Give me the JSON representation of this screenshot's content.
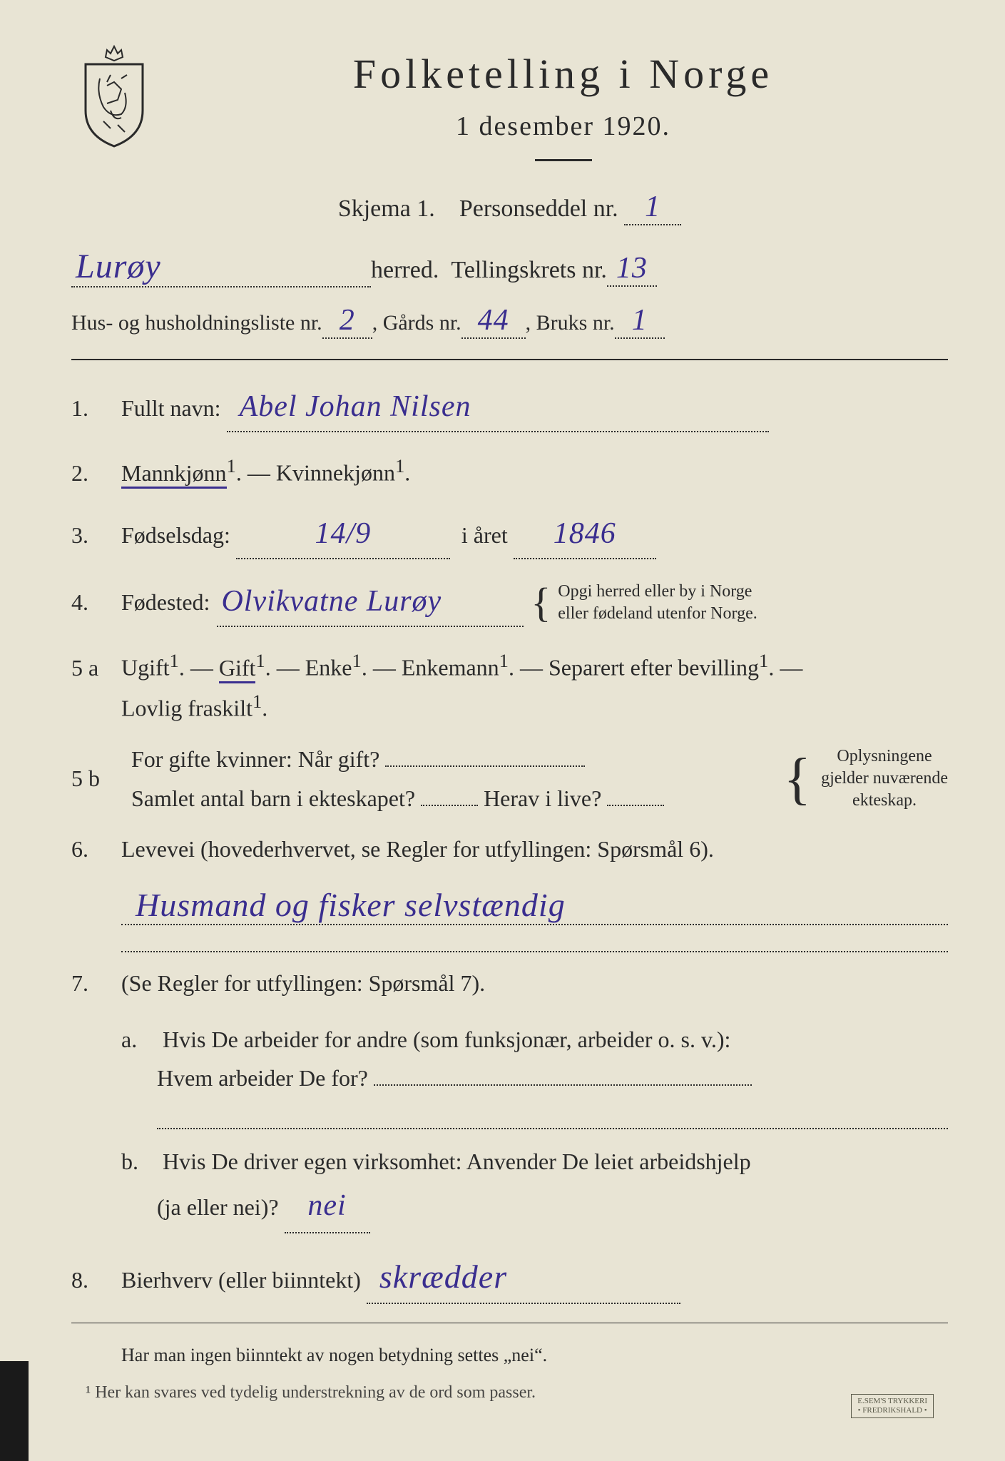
{
  "colors": {
    "paper": "#e8e4d4",
    "ink": "#2a2a2a",
    "handwriting": "#3a2e8f"
  },
  "header": {
    "title": "Folketelling  i  Norge",
    "date": "1 desember 1920."
  },
  "skjema": {
    "label": "Skjema 1.",
    "personseddel_label": "Personseddel nr.",
    "personseddel_nr": "1"
  },
  "herred": {
    "name": "Lurøy",
    "label_suffix": "herred.",
    "tellingskrets_label": "Tellingskrets nr.",
    "tellingskrets_nr": "13"
  },
  "husline": {
    "prefix": "Hus- og husholdningsliste nr.",
    "hus_nr": "2",
    "gards_label": ", Gårds nr.",
    "gards_nr": "44",
    "bruks_label": ", Bruks nr.",
    "bruks_nr": "1"
  },
  "q1": {
    "num": "1.",
    "label": "Fullt navn:",
    "value": "Abel Johan Nilsen"
  },
  "q2": {
    "num": "2.",
    "opt_mann": "Mannkjønn",
    "sup": "1",
    "dash": ". — ",
    "opt_kvinne": "Kvinnekjønn",
    "period": "."
  },
  "q3": {
    "num": "3.",
    "label": "Fødselsdag:",
    "day": "14/9",
    "year_label": "i året",
    "year": "1846"
  },
  "q4": {
    "num": "4.",
    "label": "Fødested:",
    "value": "Olvikvatne Lurøy",
    "note1": "Opgi herred eller by i Norge",
    "note2": "eller fødeland utenfor Norge."
  },
  "q5a": {
    "num": "5 a",
    "opts": [
      "Ugift",
      "Gift",
      "Enke",
      "Enkemann",
      "Separert efter bevilling"
    ],
    "second_line": "Lovlig fraskilt",
    "sup": "1",
    "dash": ". — ",
    "selected_index": 1
  },
  "q5b": {
    "num": "5 b",
    "line1_a": "For gifte kvinner:  Når gift?",
    "line2_a": "Samlet antal barn i ekteskapet?",
    "line2_b": "Herav i live?",
    "note1": "Oplysningene",
    "note2": "gjelder nuværende",
    "note3": "ekteskap."
  },
  "q6": {
    "num": "6.",
    "label": "Levevei (hovederhvervet, se Regler for utfyllingen:  Spørsmål 6).",
    "value": "Husmand og fisker selvstændig"
  },
  "q7": {
    "num": "7.",
    "label": "(Se Regler for utfyllingen:  Spørsmål 7).",
    "a_letter": "a.",
    "a_text1": "Hvis De arbeider for andre (som funksjonær, arbeider o. s. v.):",
    "a_text2": "Hvem arbeider De for?",
    "b_letter": "b.",
    "b_text1": "Hvis De driver egen virksomhet:  Anvender De leiet arbeidshjelp",
    "b_text2": "(ja eller nei)?",
    "b_value": "nei"
  },
  "q8": {
    "num": "8.",
    "label": "Bierhverv (eller biinntekt)",
    "value": "skrædder"
  },
  "footer": {
    "text": "Har man ingen biinntekt av nogen betydning settes „nei“."
  },
  "bottom_cut": "¹  Her kan svares ved tydelig understrekning av de ord som passer.",
  "stamp": {
    "line1": "E.SEM'S TRYKKERI",
    "line2": "• FREDRIKSHALD •"
  }
}
